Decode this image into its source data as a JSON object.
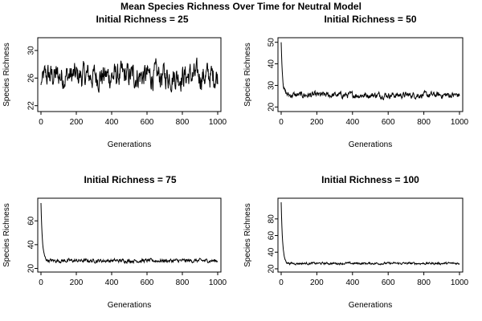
{
  "figure_title": "Mean Species Richness Over Time for Neutral Model",
  "chart_data": [
    {
      "type": "line",
      "title": "Initial Richness = 25",
      "xlabel": "Generations",
      "ylabel": "Species Richness",
      "xlim": [
        0,
        1000
      ],
      "ylim": [
        21.5,
        31.5
      ],
      "x_ticks": [
        0,
        200,
        400,
        600,
        800,
        1000
      ],
      "y_ticks": [
        22,
        26,
        30
      ],
      "initial": 25,
      "baseline": 26.3,
      "noise": 2.2,
      "line_color": "#000000"
    },
    {
      "type": "line",
      "title": "Initial Richness = 50",
      "xlabel": "Generations",
      "ylabel": "Species Richness",
      "xlim": [
        0,
        1000
      ],
      "ylim": [
        19,
        51
      ],
      "x_ticks": [
        0,
        200,
        400,
        600,
        800,
        1000
      ],
      "y_ticks": [
        20,
        30,
        40,
        50
      ],
      "initial": 50,
      "baseline": 25.5,
      "noise": 1.7,
      "line_color": "#000000"
    },
    {
      "type": "line",
      "title": "Initial Richness = 75",
      "xlabel": "Generations",
      "ylabel": "Species Richness",
      "xlim": [
        0,
        1000
      ],
      "ylim": [
        19,
        77
      ],
      "x_ticks": [
        0,
        200,
        400,
        600,
        800,
        1000
      ],
      "y_ticks": [
        20,
        40,
        60
      ],
      "initial": 75,
      "baseline": 26.5,
      "noise": 1.8,
      "line_color": "#000000"
    },
    {
      "type": "line",
      "title": "Initial Richness = 100",
      "xlabel": "Generations",
      "ylabel": "Species Richness",
      "xlim": [
        0,
        1000
      ],
      "ylim": [
        19,
        102
      ],
      "x_ticks": [
        0,
        200,
        400,
        600,
        800,
        1000
      ],
      "y_ticks": [
        20,
        40,
        60,
        80
      ],
      "initial": 100,
      "baseline": 26.5,
      "noise": 1.6,
      "line_color": "#000000"
    }
  ]
}
